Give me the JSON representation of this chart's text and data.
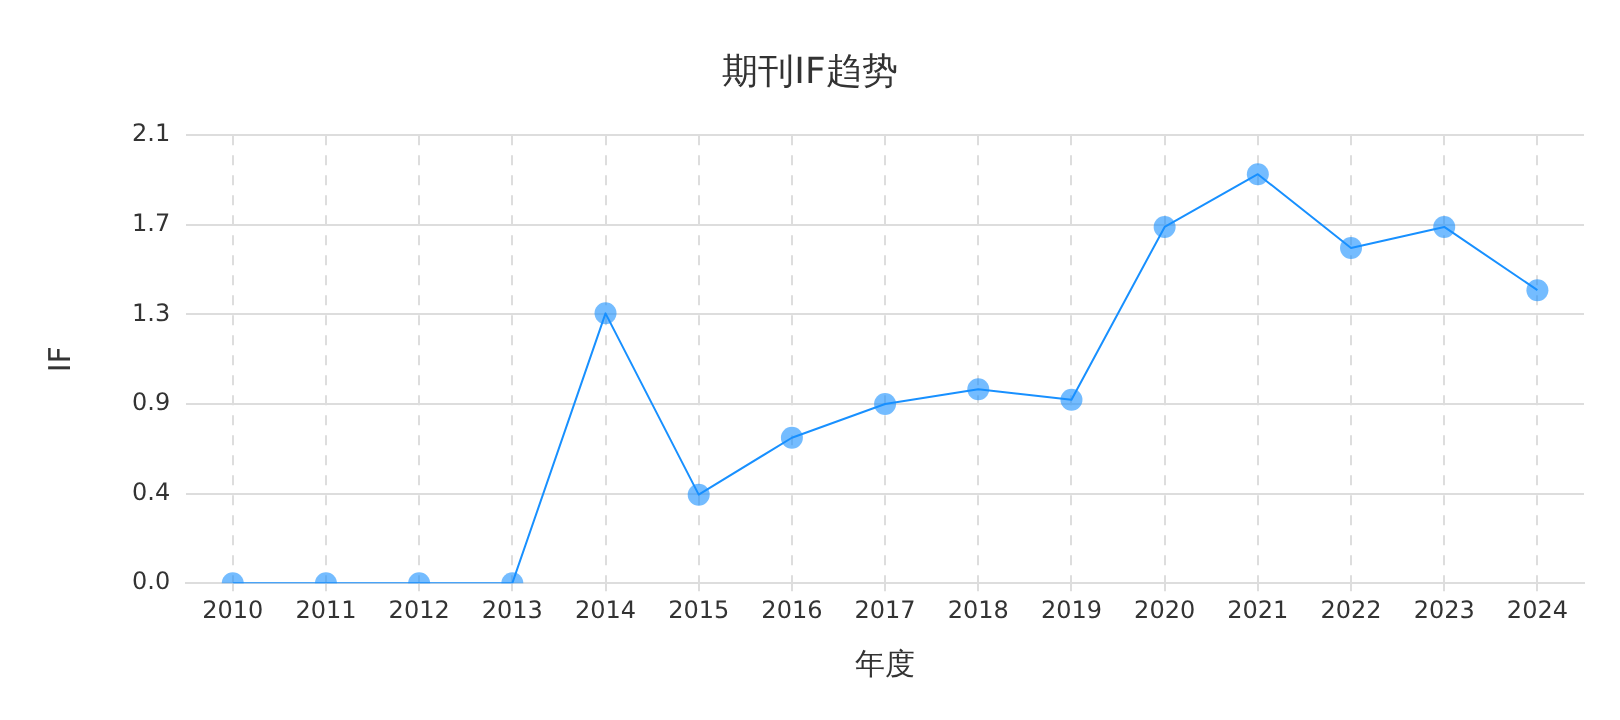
{
  "chart_data": {
    "type": "line",
    "title": "期刊IF趋势",
    "xlabel": "年度",
    "ylabel": "IF",
    "categories": [
      "2010",
      "2011",
      "2012",
      "2013",
      "2014",
      "2015",
      "2016",
      "2017",
      "2018",
      "2019",
      "2020",
      "2021",
      "2022",
      "2023",
      "2024"
    ],
    "series": [
      {
        "color": "#1890ff",
        "values": [
          0,
          0,
          0,
          0,
          1.28,
          0.42,
          0.69,
          0.85,
          0.92,
          0.87,
          1.69,
          1.94,
          1.59,
          1.69,
          1.39
        ]
      }
    ],
    "ylim": [
      0,
      2.125
    ],
    "yticks": [
      {
        "value": 0,
        "label": "0.0"
      },
      {
        "value": 0.425,
        "label": "0.4"
      },
      {
        "value": 0.85,
        "label": "0.9"
      },
      {
        "value": 1.275,
        "label": "1.3"
      },
      {
        "value": 1.7,
        "label": "1.7"
      },
      {
        "value": 2.125,
        "label": "2.1"
      }
    ],
    "grid": true,
    "marker": "circle",
    "line_style": "solid",
    "legend": false
  }
}
